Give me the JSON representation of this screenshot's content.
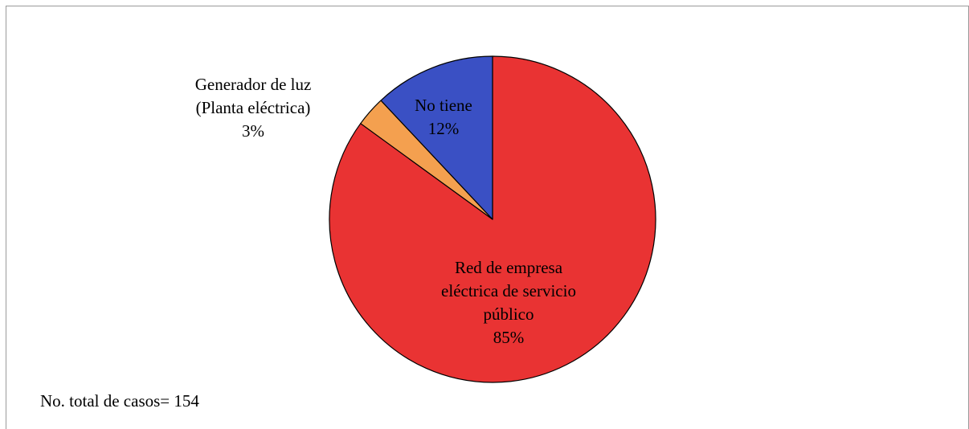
{
  "chart_data": {
    "type": "pie",
    "slices": [
      {
        "lines": [
          "Red de empresa",
          "eléctrica de servicio",
          "público"
        ],
        "percent_label": "85%",
        "value": 85,
        "color": "#e93333"
      },
      {
        "lines": [
          "Generador de luz",
          "(Planta eléctrica)"
        ],
        "percent_label": "3%",
        "value": 3,
        "color": "#f4a04f"
      },
      {
        "lines": [
          "No tiene"
        ],
        "percent_label": "12%",
        "value": 12,
        "color": "#3a50c4"
      }
    ],
    "start_angle_deg": 0,
    "direction": "clockwise",
    "legend": "none",
    "note": "No. total de casos= 154"
  }
}
